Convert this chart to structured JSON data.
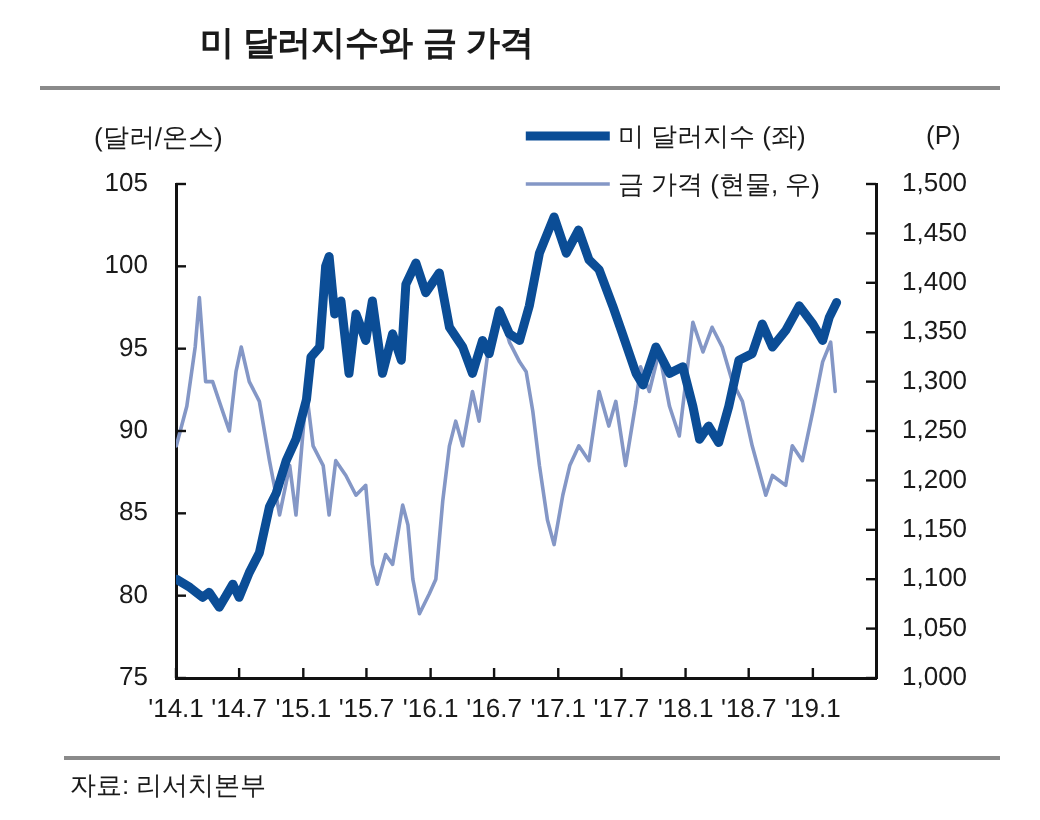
{
  "chart_data": {
    "type": "line",
    "title": "미 달러지수와 금 가격",
    "ylabel": "(달러/온스)",
    "y2label": "(P)",
    "annotations": [
      "자료: 리서치본부"
    ],
    "legend": "top right",
    "xlim": [
      "2014-01",
      "2019-07"
    ],
    "xticks": [
      {
        "value": "2014-01",
        "label": "'14.1"
      },
      {
        "value": "2014-07",
        "label": "'14.7"
      },
      {
        "value": "2015-01",
        "label": "'15.1"
      },
      {
        "value": "2015-07",
        "label": "'15.7"
      },
      {
        "value": "2016-01",
        "label": "'16.1"
      },
      {
        "value": "2016-07",
        "label": "'16.7"
      },
      {
        "value": "2017-01",
        "label": "'17.1"
      },
      {
        "value": "2017-07",
        "label": "'17.7"
      },
      {
        "value": "2018-01",
        "label": "'18.1"
      },
      {
        "value": "2018-07",
        "label": "'18.7"
      },
      {
        "value": "2019-01",
        "label": "'19.1"
      }
    ],
    "ylim": [
      75,
      105
    ],
    "yticks": [
      75,
      80,
      85,
      90,
      95,
      100,
      105
    ],
    "y2lim": [
      1000,
      1500
    ],
    "y2ticks": [
      {
        "value": 1000,
        "label": "1,000"
      },
      {
        "value": 1050,
        "label": "1,050"
      },
      {
        "value": 1100,
        "label": "1,100"
      },
      {
        "value": 1150,
        "label": "1,150"
      },
      {
        "value": 1200,
        "label": "1,200"
      },
      {
        "value": 1250,
        "label": "1,250"
      },
      {
        "value": 1300,
        "label": "1,300"
      },
      {
        "value": 1350,
        "label": "1,350"
      },
      {
        "value": 1400,
        "label": "1,400"
      },
      {
        "value": 1450,
        "label": "1,450"
      },
      {
        "value": 1500,
        "label": "1,500"
      }
    ],
    "series": [
      {
        "name": "미 달러지수 (좌)",
        "color": "#0b4d96",
        "x": [
          "2014-01-02",
          "2014-02-10",
          "2014-03-18",
          "2014-04-06",
          "2014-05-05",
          "2014-06-13",
          "2014-07-01",
          "2014-07-30",
          "2014-08-28",
          "2014-09-26",
          "2014-10-15",
          "2014-11-13",
          "2014-12-11",
          "2015-01-10",
          "2015-01-23",
          "2015-02-17",
          "2015-03-06",
          "2015-03-16",
          "2015-04-01",
          "2015-04-19",
          "2015-05-12",
          "2015-06-01",
          "2015-06-29",
          "2015-07-18",
          "2015-08-16",
          "2015-09-14",
          "2015-10-09",
          "2015-10-22",
          "2015-11-20",
          "2015-12-18",
          "2016-01-26",
          "2016-02-24",
          "2016-04-02",
          "2016-04-30",
          "2016-05-29",
          "2016-06-17",
          "2016-07-16",
          "2016-08-14",
          "2016-09-12",
          "2016-10-10",
          "2016-11-08",
          "2016-12-20",
          "2017-01-24",
          "2017-02-28",
          "2017-03-30",
          "2017-04-28",
          "2017-06-06",
          "2017-07-04",
          "2017-08-12",
          "2017-09-01",
          "2017-10-08",
          "2017-11-16",
          "2017-12-24",
          "2018-01-22",
          "2018-02-10",
          "2018-03-08",
          "2018-04-06",
          "2018-05-05",
          "2018-06-03",
          "2018-07-11",
          "2018-08-09",
          "2018-09-07",
          "2018-10-15",
          "2018-11-23",
          "2019-01-01",
          "2019-01-29",
          "2019-02-17",
          "2019-03-10"
        ],
        "values": [
          81.0,
          80.5,
          79.9,
          80.2,
          79.3,
          80.7,
          79.9,
          81.4,
          82.6,
          85.4,
          86.2,
          88.2,
          89.5,
          91.9,
          94.5,
          95.1,
          100.0,
          100.6,
          97.1,
          97.9,
          93.5,
          97.1,
          95.5,
          97.9,
          93.5,
          95.9,
          94.3,
          98.9,
          100.2,
          98.4,
          99.6,
          96.3,
          95.1,
          93.5,
          95.5,
          94.7,
          97.3,
          95.9,
          95.5,
          97.6,
          100.8,
          103.0,
          100.8,
          102.2,
          100.4,
          99.8,
          97.6,
          95.9,
          93.5,
          92.8,
          95.1,
          93.5,
          93.9,
          91.5,
          89.5,
          90.3,
          89.3,
          91.5,
          94.3,
          94.7,
          96.5,
          95.1,
          96.1,
          97.6,
          96.5,
          95.5,
          96.9,
          97.8
        ]
      },
      {
        "name": "금 가격 (현물, 우)",
        "color": "#8497c6",
        "axis": "y2",
        "x": [
          "2014-01-02",
          "2014-02-01",
          "2014-02-25",
          "2014-03-09",
          "2014-03-27",
          "2014-04-16",
          "2014-05-05",
          "2014-06-03",
          "2014-06-22",
          "2014-07-07",
          "2014-07-30",
          "2014-08-28",
          "2014-09-26",
          "2014-10-15",
          "2014-10-25",
          "2014-11-23",
          "2014-12-11",
          "2015-01-10",
          "2015-01-29",
          "2015-02-27",
          "2015-03-16",
          "2015-04-04",
          "2015-05-03",
          "2015-06-01",
          "2015-06-29",
          "2015-07-18",
          "2015-08-01",
          "2015-08-25",
          "2015-09-14",
          "2015-10-13",
          "2015-10-28",
          "2015-11-11",
          "2015-11-30",
          "2015-12-28",
          "2016-01-16",
          "2016-02-05",
          "2016-02-24",
          "2016-03-13",
          "2016-04-02",
          "2016-04-30",
          "2016-05-19",
          "2016-06-17",
          "2016-07-16",
          "2016-08-14",
          "2016-09-12",
          "2016-10-01",
          "2016-10-20",
          "2016-11-08",
          "2016-12-01",
          "2016-12-20",
          "2017-01-14",
          "2017-02-03",
          "2017-03-01",
          "2017-03-30",
          "2017-04-28",
          "2017-05-26",
          "2017-06-15",
          "2017-07-13",
          "2017-08-12",
          "2017-08-25",
          "2017-09-19",
          "2017-10-17",
          "2017-11-16",
          "2017-12-14",
          "2018-01-22",
          "2018-02-20",
          "2018-03-18",
          "2018-04-16",
          "2018-05-15",
          "2018-06-13",
          "2018-07-11",
          "2018-08-19",
          "2018-09-07",
          "2018-10-15",
          "2018-11-03",
          "2018-12-02",
          "2019-01-01",
          "2019-01-29",
          "2019-02-21",
          "2019-03-06"
        ],
        "values": [
          1235,
          1275,
          1335,
          1385,
          1300,
          1300,
          1280,
          1250,
          1310,
          1335,
          1300,
          1280,
          1220,
          1185,
          1165,
          1215,
          1165,
          1290,
          1235,
          1215,
          1165,
          1220,
          1205,
          1185,
          1195,
          1115,
          1095,
          1125,
          1115,
          1175,
          1155,
          1100,
          1065,
          1085,
          1100,
          1180,
          1235,
          1260,
          1235,
          1290,
          1260,
          1340,
          1375,
          1340,
          1320,
          1310,
          1270,
          1215,
          1160,
          1135,
          1185,
          1215,
          1235,
          1220,
          1290,
          1255,
          1280,
          1215,
          1280,
          1315,
          1290,
          1330,
          1275,
          1245,
          1360,
          1330,
          1355,
          1335,
          1300,
          1280,
          1235,
          1185,
          1205,
          1195,
          1235,
          1220,
          1270,
          1320,
          1340,
          1290
        ]
      }
    ]
  }
}
